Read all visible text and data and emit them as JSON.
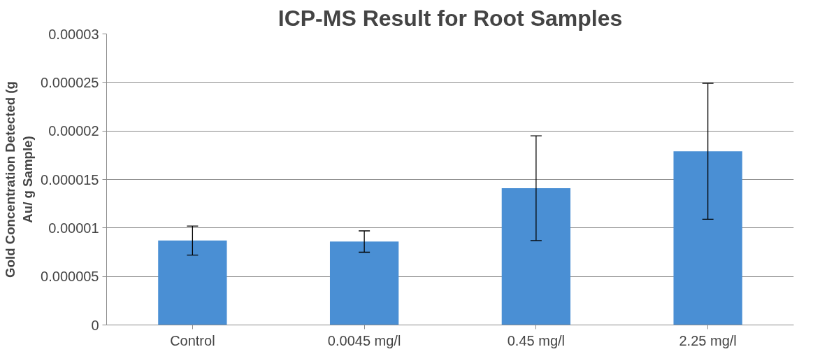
{
  "chart_data": {
    "type": "bar",
    "title": "ICP-MS Result for Root Samples",
    "ylabel": "Gold Concentration Detected (g Au/ g Sample)",
    "categories": [
      "Control",
      "0.0045 mg/l",
      "0.45 mg/l",
      "2.25 mg/l"
    ],
    "values": [
      8.7e-06,
      8.6e-06,
      1.41e-05,
      1.79e-05
    ],
    "errors": [
      1.5e-06,
      1.1e-06,
      5.4e-06,
      7e-06
    ],
    "color": "#4a8fd4",
    "ylim": [
      0,
      3e-05
    ],
    "yticks": [
      {
        "value": 0,
        "label": "0"
      },
      {
        "value": 5e-06,
        "label": "0.000005"
      },
      {
        "value": 1e-05,
        "label": "0.00001"
      },
      {
        "value": 1.5e-05,
        "label": "0.000015"
      },
      {
        "value": 2e-05,
        "label": "0.00002"
      },
      {
        "value": 2.5e-05,
        "label": "0.000025"
      },
      {
        "value": 3e-05,
        "label": "0.00003"
      }
    ],
    "grid": "y"
  }
}
